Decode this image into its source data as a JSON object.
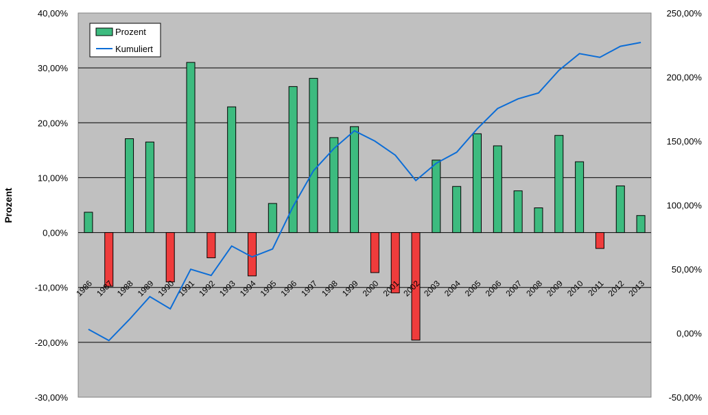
{
  "chart_data": {
    "type": "bar",
    "categories": [
      "1986",
      "1987",
      "1988",
      "1989",
      "1990",
      "1991",
      "1992",
      "1993",
      "1994",
      "1995",
      "1996",
      "1997",
      "1998",
      "1999",
      "2000",
      "2001",
      "2002",
      "2003",
      "2004",
      "2005",
      "2006",
      "2007",
      "2008",
      "2009",
      "2010",
      "2011",
      "2012",
      "2013"
    ],
    "series": [
      {
        "name": "Prozent",
        "type": "bar",
        "axis": "left",
        "values": [
          3.7,
          -9.8,
          17.1,
          16.5,
          -9.0,
          31.0,
          -4.6,
          22.9,
          -7.9,
          5.3,
          26.6,
          28.1,
          17.3,
          19.3,
          -7.3,
          -11.0,
          -19.6,
          13.2,
          8.4,
          18.0,
          15.8,
          7.6,
          4.5,
          17.7,
          12.9,
          -2.9,
          8.5,
          3.1
        ],
        "positive_color": "#3dbb7f",
        "negative_color": "#ef3c3c"
      },
      {
        "name": "Kumuliert",
        "type": "line",
        "axis": "right",
        "values": [
          3.0,
          -5.8,
          10.7,
          28.5,
          19.0,
          49.9,
          45.1,
          68.0,
          59.5,
          65.7,
          98.8,
          126.8,
          144.2,
          158.0,
          150.0,
          139.0,
          119.2,
          132.7,
          141.3,
          159.5,
          175.4,
          183.0,
          187.6,
          205.3,
          218.3,
          215.4,
          224.0,
          227.0
        ],
        "color": "#0c6dd6"
      }
    ],
    "y_left": {
      "label": "Prozent",
      "lim": [
        -30,
        40
      ],
      "ticks": [
        -30,
        -20,
        -10,
        0,
        10,
        20,
        30,
        40
      ],
      "tick_labels": [
        "-30,00%",
        "-20,00%",
        "-10,00%",
        "0,00%",
        "10,00%",
        "20,00%",
        "30,00%",
        "40,00%"
      ]
    },
    "y_right": {
      "label": "",
      "lim": [
        -50,
        250
      ],
      "ticks": [
        -50,
        0,
        50,
        100,
        150,
        200,
        250
      ],
      "tick_labels": [
        "-50,00%",
        "0,00%",
        "50,00%",
        "100,00%",
        "150,00%",
        "200,00%",
        "250,00%"
      ]
    },
    "xlabel": "",
    "title": "",
    "grid": true,
    "legend": {
      "placement": "top-left",
      "entries": [
        "Prozent",
        "Kumuliert"
      ]
    },
    "colors": {
      "plot_background": "#c0c0c0",
      "gridline": "#000000"
    }
  }
}
